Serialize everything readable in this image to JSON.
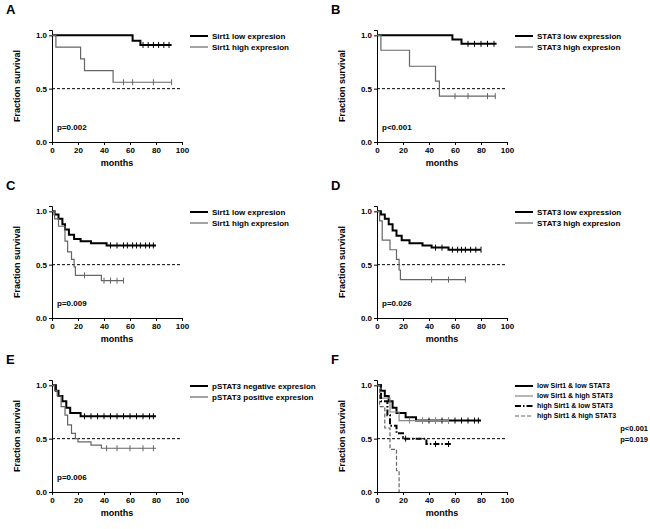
{
  "chart_data": [
    {
      "type": "step",
      "panel": "A",
      "x_label": "months",
      "y_label": "Fraction survival",
      "xlim": [
        0,
        100
      ],
      "ylim": [
        0,
        1.05
      ],
      "xticks": [
        0,
        20,
        40,
        60,
        80,
        100
      ],
      "yticks": [
        {
          "value": 0,
          "label": "0.0"
        },
        {
          "value": 0.5,
          "label": "0.5"
        },
        {
          "value": 1,
          "label": "1.0"
        }
      ],
      "hline": 0.5,
      "grid": false,
      "legend": "right",
      "annotations": [
        "p=0.002"
      ],
      "series": [
        {
          "name": "Sirt1 low expresion",
          "color": "#000000",
          "line_style": "solid",
          "marker": "tick",
          "x": [
            0,
            62,
            68,
            92
          ],
          "values": [
            1,
            0.95,
            0.91,
            0.91
          ],
          "censored_x": [
            70,
            74,
            78,
            82,
            86,
            90
          ],
          "censored_values": [
            0.91,
            0.91,
            0.91,
            0.91,
            0.91,
            0.91
          ]
        },
        {
          "name": "Sirt1 high expresion",
          "color": "#666666",
          "line_style": "solid",
          "marker": "tick",
          "x": [
            0,
            3,
            22,
            25,
            47,
            92
          ],
          "values": [
            1,
            0.89,
            0.78,
            0.67,
            0.56,
            0.56
          ],
          "censored_x": [
            55,
            62,
            78,
            92
          ],
          "censored_values": [
            0.56,
            0.56,
            0.56,
            0.56
          ]
        }
      ]
    },
    {
      "type": "step",
      "panel": "B",
      "x_label": "months",
      "y_label": "Fraction survival",
      "xlim": [
        0,
        100
      ],
      "ylim": [
        0,
        1.05
      ],
      "xticks": [
        0,
        20,
        40,
        60,
        80,
        100
      ],
      "yticks": [
        {
          "value": 0,
          "label": "0.0"
        },
        {
          "value": 0.5,
          "label": "0.5"
        },
        {
          "value": 1,
          "label": "1.0"
        }
      ],
      "hline": 0.5,
      "grid": false,
      "legend": "right",
      "annotations": [
        "p<0.001"
      ],
      "series": [
        {
          "name": "STAT3 low expression",
          "color": "#000000",
          "line_style": "solid",
          "marker": "tick",
          "x": [
            0,
            58,
            65,
            92
          ],
          "values": [
            1,
            0.96,
            0.92,
            0.92
          ],
          "censored_x": [
            70,
            75,
            80,
            85,
            90
          ],
          "censored_values": [
            0.92,
            0.92,
            0.92,
            0.92,
            0.92
          ]
        },
        {
          "name": "STAT3 high expresion",
          "color": "#666666",
          "line_style": "solid",
          "marker": "tick",
          "x": [
            0,
            3,
            25,
            45,
            48,
            91
          ],
          "values": [
            1,
            0.86,
            0.71,
            0.57,
            0.43,
            0.43
          ],
          "censored_x": [
            60,
            70,
            85,
            91
          ],
          "censored_values": [
            0.43,
            0.43,
            0.43,
            0.43
          ]
        }
      ]
    },
    {
      "type": "step",
      "panel": "C",
      "x_label": "months",
      "y_label": "Fraction survival",
      "xlim": [
        0,
        100
      ],
      "ylim": [
        0,
        1.05
      ],
      "xticks": [
        0,
        20,
        40,
        60,
        80,
        100
      ],
      "yticks": [
        {
          "value": 0,
          "label": "0.0"
        },
        {
          "value": 0.5,
          "label": "0.5"
        },
        {
          "value": 1,
          "label": "1.0"
        }
      ],
      "hline": 0.5,
      "grid": false,
      "legend": "right",
      "annotations": [
        "p=0.009"
      ],
      "series": [
        {
          "name": "Sirt1 low expresion",
          "color": "#000000",
          "line_style": "solid",
          "marker": "tick",
          "x": [
            0,
            2,
            5,
            8,
            10,
            13,
            17,
            22,
            30,
            42,
            80
          ],
          "values": [
            1,
            0.97,
            0.93,
            0.88,
            0.83,
            0.78,
            0.74,
            0.72,
            0.7,
            0.68,
            0.68
          ],
          "censored_x": [
            45,
            50,
            55,
            58,
            62,
            65,
            68,
            72,
            75,
            78
          ],
          "censored_values": [
            0.68,
            0.68,
            0.68,
            0.68,
            0.68,
            0.68,
            0.68,
            0.68,
            0.68,
            0.68
          ]
        },
        {
          "name": "Sirt1 high expresion",
          "color": "#666666",
          "line_style": "solid",
          "marker": "tick",
          "x": [
            0,
            2,
            5,
            10,
            12,
            15,
            17,
            18,
            38,
            55
          ],
          "values": [
            1,
            0.93,
            0.86,
            0.72,
            0.62,
            0.55,
            0.48,
            0.4,
            0.35,
            0.35
          ],
          "censored_x": [
            25,
            40,
            45,
            50,
            55
          ],
          "censored_values": [
            0.4,
            0.35,
            0.35,
            0.35,
            0.35
          ]
        }
      ]
    },
    {
      "type": "step",
      "panel": "D",
      "x_label": "months",
      "y_label": "Fraction survival",
      "xlim": [
        0,
        100
      ],
      "ylim": [
        0,
        1.05
      ],
      "xticks": [
        0,
        20,
        40,
        60,
        80,
        100
      ],
      "yticks": [
        {
          "value": 0,
          "label": "0.0"
        },
        {
          "value": 0.5,
          "label": "0.5"
        },
        {
          "value": 1,
          "label": "1.0"
        }
      ],
      "hline": 0.5,
      "grid": false,
      "legend": "right",
      "annotations": [
        "p=0.026"
      ],
      "series": [
        {
          "name": "STAT3 low expression",
          "color": "#000000",
          "line_style": "solid",
          "marker": "tick",
          "x": [
            0,
            3,
            6,
            9,
            12,
            15,
            19,
            25,
            35,
            42,
            55,
            80
          ],
          "values": [
            1,
            0.97,
            0.93,
            0.88,
            0.82,
            0.77,
            0.73,
            0.7,
            0.68,
            0.66,
            0.64,
            0.64
          ],
          "censored_x": [
            45,
            50,
            58,
            62,
            65,
            68,
            72,
            76,
            80
          ],
          "censored_values": [
            0.66,
            0.66,
            0.64,
            0.64,
            0.64,
            0.64,
            0.64,
            0.64,
            0.64
          ]
        },
        {
          "name": "STAT3 high expresion",
          "color": "#666666",
          "line_style": "solid",
          "marker": "tick",
          "x": [
            0,
            2,
            4,
            10,
            15,
            17,
            18,
            68
          ],
          "values": [
            1,
            0.91,
            0.73,
            0.64,
            0.55,
            0.45,
            0.36,
            0.36
          ],
          "censored_x": [
            42,
            55,
            68
          ],
          "censored_values": [
            0.36,
            0.36,
            0.36
          ]
        }
      ]
    },
    {
      "type": "step",
      "panel": "E",
      "x_label": "months",
      "y_label": "Fraction survival",
      "xlim": [
        0,
        100
      ],
      "ylim": [
        0,
        1.05
      ],
      "xticks": [
        0,
        20,
        40,
        60,
        80,
        100
      ],
      "yticks": [
        {
          "value": 0,
          "label": "0.0"
        },
        {
          "value": 0.5,
          "label": "0.5"
        },
        {
          "value": 1,
          "label": "1.0"
        }
      ],
      "hline": 0.5,
      "grid": false,
      "legend": "right",
      "annotations": [
        "p=0.006"
      ],
      "series": [
        {
          "name": "pSTAT3 negative expresion",
          "color": "#000000",
          "line_style": "solid",
          "marker": "tick",
          "x": [
            0,
            3,
            5,
            8,
            11,
            14,
            22,
            80
          ],
          "values": [
            1,
            0.95,
            0.9,
            0.85,
            0.79,
            0.74,
            0.71,
            0.71
          ],
          "censored_x": [
            25,
            30,
            35,
            40,
            45,
            50,
            55,
            60,
            65,
            70,
            75,
            78
          ],
          "censored_values": [
            0.71,
            0.71,
            0.71,
            0.71,
            0.71,
            0.71,
            0.71,
            0.71,
            0.71,
            0.71,
            0.71,
            0.71
          ]
        },
        {
          "name": "pSTAT3 positive expresion",
          "color": "#666666",
          "line_style": "solid",
          "marker": "tick",
          "x": [
            0,
            2,
            4,
            7,
            10,
            12,
            15,
            18,
            20,
            30,
            38,
            80
          ],
          "values": [
            1,
            0.95,
            0.9,
            0.8,
            0.72,
            0.63,
            0.55,
            0.5,
            0.47,
            0.44,
            0.41,
            0.41
          ],
          "censored_x": [
            42,
            50,
            60,
            70,
            78
          ],
          "censored_values": [
            0.41,
            0.41,
            0.41,
            0.41,
            0.41
          ]
        }
      ]
    },
    {
      "type": "step",
      "panel": "F",
      "x_label": "months",
      "y_label": "Fraction survival",
      "xlim": [
        0,
        100
      ],
      "ylim": [
        0,
        1.05
      ],
      "xticks": [
        0,
        20,
        40,
        60,
        80,
        100
      ],
      "yticks": [
        {
          "value": 0,
          "label": "0.0"
        },
        {
          "value": 0.5,
          "label": "0.5"
        },
        {
          "value": 1,
          "label": "1.0"
        }
      ],
      "hline": 0.5,
      "grid": false,
      "legend": "right",
      "annotations": [
        "p<0.001",
        "p=0.019"
      ],
      "series": [
        {
          "name": "low Sirt1 & low STAT3",
          "color": "#000000",
          "line_style": "solid",
          "marker": "tick",
          "x": [
            0,
            3,
            6,
            9,
            12,
            15,
            22,
            30,
            80
          ],
          "values": [
            1,
            0.95,
            0.9,
            0.85,
            0.79,
            0.74,
            0.7,
            0.67,
            0.67
          ],
          "censored_x": [
            35,
            40,
            45,
            50,
            55,
            60,
            65,
            70,
            75,
            78
          ],
          "censored_values": [
            0.67,
            0.67,
            0.67,
            0.67,
            0.67,
            0.67,
            0.67,
            0.67,
            0.67,
            0.67
          ]
        },
        {
          "name": "low Sirt1 & high STAT3",
          "color": "#888888",
          "line_style": "solid",
          "marker": "tick",
          "x": [
            0,
            3,
            10,
            17,
            55
          ],
          "values": [
            1,
            0.88,
            0.75,
            0.67,
            0.67
          ],
          "censored_x": [
            25,
            35,
            45,
            55
          ],
          "censored_values": [
            0.67,
            0.67,
            0.67,
            0.67
          ]
        },
        {
          "name": "high Sirt1 & low STAT3",
          "color": "#000000",
          "line_style": "dashdot",
          "marker": "tick",
          "x": [
            0,
            3,
            8,
            10,
            15,
            20,
            38,
            58
          ],
          "values": [
            1,
            0.85,
            0.72,
            0.62,
            0.55,
            0.5,
            0.45,
            0.45
          ],
          "censored_x": [
            22,
            45,
            55
          ],
          "censored_values": [
            0.5,
            0.45,
            0.45
          ]
        },
        {
          "name": "high Sirt1 & high STAT3",
          "color": "#666666",
          "line_style": "dashed",
          "marker": "tick",
          "x": [
            0,
            2,
            6,
            10,
            15,
            17
          ],
          "values": [
            1,
            0.8,
            0.6,
            0.4,
            0.2,
            0
          ],
          "censored_x": [],
          "censored_values": []
        }
      ]
    }
  ]
}
